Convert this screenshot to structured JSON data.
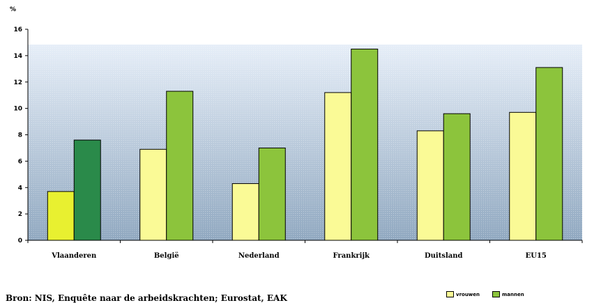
{
  "chart_data": {
    "type": "bar",
    "ylabel": "%",
    "ylim": [
      0,
      16
    ],
    "yticks": [
      0,
      2,
      4,
      6,
      8,
      10,
      12,
      14,
      16
    ],
    "categories": [
      "Vlaanderen",
      "België",
      "Nederland",
      "Frankrijk",
      "Duitsland",
      "EU15"
    ],
    "series": [
      {
        "name": "vrouwen",
        "values": [
          3.7,
          6.9,
          4.3,
          11.2,
          8.3,
          9.7
        ]
      },
      {
        "name": "mannen",
        "values": [
          7.6,
          11.3,
          7.0,
          14.5,
          9.6,
          13.1
        ]
      }
    ],
    "highlight_category_colors": {
      "0": [
        "#e8f030",
        "#2a8a4a"
      ]
    },
    "colors": {
      "series0": "#fafa96",
      "series1": "#8cc43c",
      "background_top": "#e6eef8",
      "background_bottom": "#90a8c0"
    },
    "grid": false,
    "legend": "bottom-right"
  },
  "source_text": "Bron: NIS, Enquête naar de arbeidskrachten; Eurostat, EAK"
}
